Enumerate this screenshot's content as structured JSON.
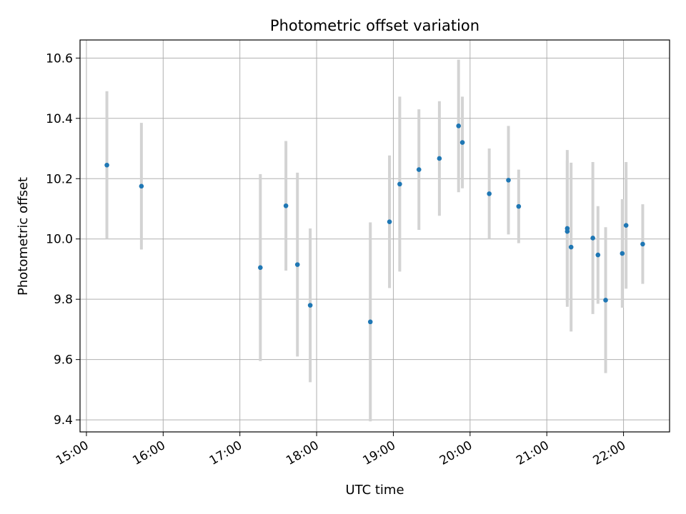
{
  "chart_data": {
    "type": "scatter",
    "title": "Photometric offset variation",
    "xlabel": "UTC time",
    "ylabel": "Photometric offset",
    "x_ticks": [
      "15:00",
      "16:00",
      "17:00",
      "18:00",
      "19:00",
      "20:00",
      "21:00",
      "22:00"
    ],
    "y_ticks": [
      "9.4",
      "9.6",
      "9.8",
      "10.0",
      "10.2",
      "10.4",
      "10.6"
    ],
    "xlim": [
      "14:55",
      "22:36"
    ],
    "ylim": [
      9.36,
      10.66
    ],
    "grid": true,
    "errorbar_color": "#d3d3d3",
    "point_color": "#1f77b4",
    "points": [
      {
        "x": "15:16",
        "y": 10.245,
        "err": 0.245
      },
      {
        "x": "15:43",
        "y": 10.175,
        "err": 0.21
      },
      {
        "x": "17:16",
        "y": 9.905,
        "err": 0.31
      },
      {
        "x": "17:36",
        "y": 10.11,
        "err": 0.215
      },
      {
        "x": "17:45",
        "y": 9.915,
        "err": 0.305
      },
      {
        "x": "17:55",
        "y": 9.78,
        "err": 0.255
      },
      {
        "x": "18:42",
        "y": 9.725,
        "err": 0.33
      },
      {
        "x": "18:57",
        "y": 10.057,
        "err": 0.22
      },
      {
        "x": "19:05",
        "y": 10.182,
        "err": 0.29
      },
      {
        "x": "19:20",
        "y": 10.23,
        "err": 0.2
      },
      {
        "x": "19:36",
        "y": 10.267,
        "err": 0.19
      },
      {
        "x": "19:51",
        "y": 10.375,
        "err": 0.22
      },
      {
        "x": "19:54",
        "y": 10.32,
        "err": 0.152
      },
      {
        "x": "20:15",
        "y": 10.15,
        "err": 0.15
      },
      {
        "x": "20:30",
        "y": 10.195,
        "err": 0.18
      },
      {
        "x": "20:38",
        "y": 10.108,
        "err": 0.122
      },
      {
        "x": "21:16",
        "y": 10.035,
        "err": 0.26
      },
      {
        "x": "21:16",
        "y": 10.025,
        "err": 0.235
      },
      {
        "x": "21:19",
        "y": 9.973,
        "err": 0.28
      },
      {
        "x": "21:36",
        "y": 10.003,
        "err": 0.252
      },
      {
        "x": "21:40",
        "y": 9.947,
        "err": 0.162
      },
      {
        "x": "21:46",
        "y": 9.797,
        "err": 0.242
      },
      {
        "x": "21:59",
        "y": 9.952,
        "err": 0.18
      },
      {
        "x": "22:02",
        "y": 10.045,
        "err": 0.21
      },
      {
        "x": "22:15",
        "y": 9.983,
        "err": 0.132
      }
    ]
  }
}
